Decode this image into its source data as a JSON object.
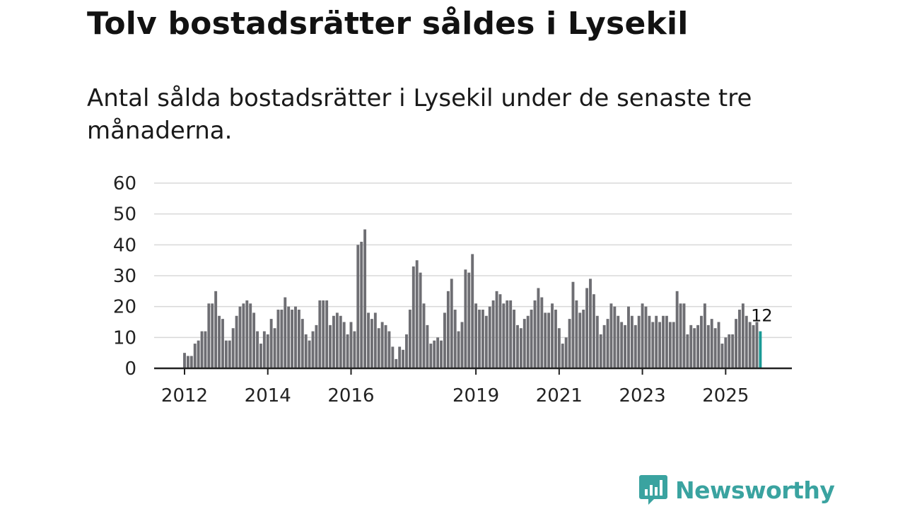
{
  "title": "Tolv bostadsrätter såldes i Lysekil",
  "subtitle": "Antal sålda bostadsrätter i Lysekil under de senaste tre månaderna.",
  "logo": {
    "text": "Newsworthy",
    "icon": "newsworthy-bar-chart-icon"
  },
  "colors": {
    "bar": "#6e6e73",
    "highlight": "#1a9a96",
    "grid": "#d8d8d8",
    "axis": "#222222"
  },
  "chart_data": {
    "type": "bar",
    "title": "Tolv bostadsrätter såldes i Lysekil",
    "xlabel": "",
    "ylabel": "",
    "ylim": [
      0,
      60
    ],
    "yticks": [
      0,
      10,
      20,
      30,
      40,
      50,
      60
    ],
    "grid": true,
    "start_year": 2012,
    "xtick_labels": [
      "2012",
      "2014",
      "2016",
      "2019",
      "2021",
      "2023",
      "2025"
    ],
    "highlight_label": "12",
    "values": [
      5,
      4,
      4,
      8,
      9,
      12,
      12,
      21,
      21,
      25,
      17,
      16,
      9,
      9,
      13,
      17,
      20,
      21,
      22,
      21,
      18,
      12,
      8,
      12,
      11,
      16,
      13,
      19,
      19,
      23,
      20,
      19,
      20,
      19,
      16,
      11,
      9,
      12,
      14,
      22,
      22,
      22,
      14,
      17,
      18,
      17,
      15,
      11,
      15,
      12,
      40,
      41,
      45,
      18,
      16,
      18,
      13,
      15,
      14,
      12,
      7,
      3,
      7,
      6,
      11,
      19,
      33,
      35,
      31,
      21,
      14,
      8,
      9,
      10,
      9,
      18,
      25,
      29,
      19,
      12,
      15,
      32,
      31,
      37,
      21,
      19,
      19,
      17,
      20,
      22,
      25,
      24,
      21,
      22,
      22,
      19,
      14,
      13,
      16,
      17,
      19,
      22,
      26,
      23,
      18,
      18,
      21,
      19,
      13,
      8,
      10,
      16,
      28,
      22,
      18,
      19,
      26,
      29,
      24,
      17,
      11,
      14,
      16,
      21,
      20,
      17,
      15,
      14,
      20,
      17,
      14,
      17,
      21,
      20,
      17,
      15,
      17,
      15,
      17,
      17,
      15,
      15,
      25,
      21,
      21,
      11,
      14,
      13,
      14,
      17,
      21,
      14,
      16,
      13,
      15,
      8,
      10,
      11,
      11,
      16,
      19,
      21,
      17,
      15,
      14,
      15,
      12
    ]
  }
}
